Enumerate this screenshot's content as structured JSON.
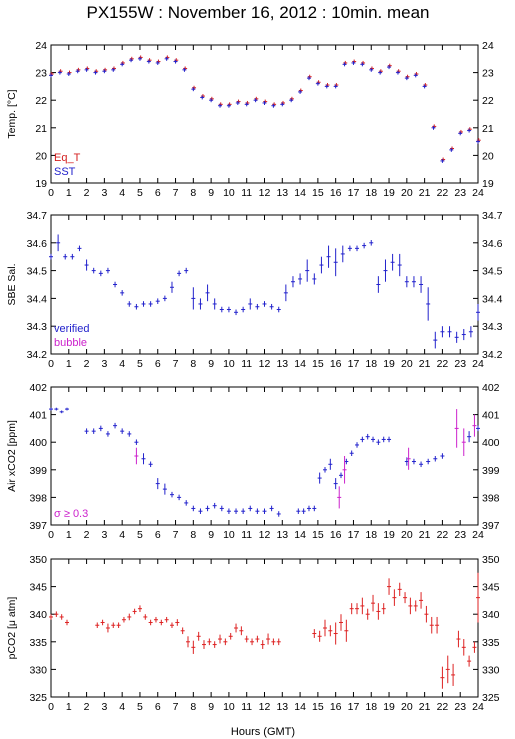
{
  "title": "PX155W : November 16, 2012 : 10min. mean",
  "x_axis": {
    "label": "Hours (GMT)",
    "min": 0,
    "max": 24,
    "ticks": [
      "0",
      "1",
      "2",
      "3",
      "4",
      "5",
      "6",
      "7",
      "8",
      "9",
      "10",
      "11",
      "12",
      "13",
      "14",
      "15",
      "16",
      "17",
      "18",
      "19",
      "20",
      "21",
      "22",
      "23",
      "24"
    ]
  },
  "chart_data": [
    {
      "type": "scatter",
      "ylabel": "Temp. [°C]",
      "ylim": [
        19,
        24
      ],
      "yticks": [
        "19",
        "20",
        "21",
        "22",
        "23",
        "24"
      ],
      "legend": [
        {
          "name": "Eq_T",
          "color": "#d42020"
        },
        {
          "name": "SST",
          "color": "#2222cc"
        }
      ],
      "legend_position": "bottom-left",
      "series": [
        {
          "name": "Eq_T",
          "color": "#d42020",
          "offset": [
            0.04,
            0.05
          ],
          "x": [
            0,
            0.5,
            1,
            1.5,
            2,
            2.5,
            3,
            3.5,
            4,
            4.5,
            5,
            5.5,
            6,
            6.5,
            7,
            7.5,
            8,
            8.5,
            9,
            9.5,
            10,
            10.5,
            11,
            11.5,
            12,
            12.5,
            13,
            13.5,
            14,
            14.5,
            15,
            15.5,
            16,
            16.5,
            17,
            17.5,
            18,
            18.5,
            19,
            19.5,
            20,
            20.5,
            21,
            21.5,
            22,
            22.5,
            23,
            23.5,
            24
          ],
          "y": [
            22.9,
            23.0,
            22.95,
            23.05,
            23.1,
            23.0,
            23.05,
            23.1,
            23.3,
            23.45,
            23.5,
            23.4,
            23.35,
            23.5,
            23.4,
            23.1,
            22.4,
            22.1,
            22.0,
            21.8,
            21.8,
            21.9,
            21.85,
            22.0,
            21.9,
            21.8,
            21.85,
            22.0,
            22.3,
            22.8,
            22.6,
            22.5,
            22.5,
            23.3,
            23.35,
            23.3,
            23.1,
            23.0,
            23.2,
            23.0,
            22.8,
            22.9,
            22.5,
            21.0,
            19.8,
            20.2,
            20.8,
            20.9,
            20.5
          ]
        },
        {
          "name": "SST",
          "color": "#2222cc",
          "offset": [
            0,
            0
          ],
          "x": [
            0,
            0.5,
            1,
            1.5,
            2,
            2.5,
            3,
            3.5,
            4,
            4.5,
            5,
            5.5,
            6,
            6.5,
            7,
            7.5,
            8,
            8.5,
            9,
            9.5,
            10,
            10.5,
            11,
            11.5,
            12,
            12.5,
            13,
            13.5,
            14,
            14.5,
            15,
            15.5,
            16,
            16.5,
            17,
            17.5,
            18,
            18.5,
            19,
            19.5,
            20,
            20.5,
            21,
            21.5,
            22,
            22.5,
            23,
            23.5,
            24
          ],
          "y": [
            22.9,
            23.0,
            22.95,
            23.05,
            23.1,
            23.0,
            23.05,
            23.1,
            23.3,
            23.45,
            23.5,
            23.4,
            23.35,
            23.5,
            23.4,
            23.1,
            22.4,
            22.1,
            22.0,
            21.8,
            21.8,
            21.9,
            21.85,
            22.0,
            21.9,
            21.8,
            21.85,
            22.0,
            22.3,
            22.8,
            22.6,
            22.5,
            22.5,
            23.3,
            23.35,
            23.3,
            23.1,
            23.0,
            23.2,
            23.0,
            22.8,
            22.9,
            22.5,
            21.0,
            19.8,
            20.2,
            20.8,
            20.9,
            20.5
          ]
        }
      ]
    },
    {
      "type": "scatter",
      "ylabel": "SBE Sal.",
      "ylim": [
        34.2,
        34.7
      ],
      "yticks": [
        "34.2",
        "34.3",
        "34.4",
        "34.5",
        "34.6",
        "34.7"
      ],
      "legend": [
        {
          "name": "verified",
          "color": "#2222cc"
        },
        {
          "name": "bubble",
          "color": "#cc22cc"
        }
      ],
      "legend_position": "bottom-left",
      "series": [
        {
          "name": "verified",
          "color": "#2222cc",
          "x": [
            0,
            0.4,
            0.8,
            1.2,
            1.6,
            2,
            2.4,
            2.8,
            3.2,
            3.6,
            4,
            4.4,
            4.8,
            5.2,
            5.6,
            6,
            6.4,
            6.8,
            7.2,
            7.6,
            8,
            8.4,
            8.8,
            9.2,
            9.6,
            10,
            10.4,
            10.8,
            11.2,
            11.6,
            12,
            12.4,
            12.8,
            13.2,
            13.6,
            14,
            14.4,
            14.8,
            15.2,
            15.6,
            16,
            16.4,
            16.8,
            17.2,
            17.6,
            18,
            18.4,
            18.8,
            19.2,
            19.6,
            20,
            20.4,
            20.8,
            21.2,
            21.6,
            22,
            22.4,
            22.8,
            23.2,
            23.6,
            24
          ],
          "y": [
            34.55,
            34.6,
            34.55,
            34.55,
            34.58,
            34.52,
            34.5,
            34.49,
            34.5,
            34.45,
            34.42,
            34.38,
            34.37,
            34.38,
            34.38,
            34.39,
            34.4,
            34.44,
            34.49,
            34.5,
            34.4,
            34.38,
            34.42,
            34.38,
            34.36,
            34.36,
            34.35,
            34.36,
            34.38,
            34.37,
            34.38,
            34.37,
            34.36,
            34.42,
            34.46,
            34.47,
            34.5,
            34.47,
            34.52,
            34.55,
            34.53,
            34.56,
            34.58,
            34.58,
            34.59,
            34.6,
            34.45,
            34.5,
            34.53,
            34.52,
            34.46,
            34.46,
            34.45,
            34.38,
            34.25,
            34.28,
            34.28,
            34.26,
            34.27,
            34.28,
            34.35
          ],
          "err": [
            0.01,
            0.03,
            0.01,
            0.01,
            0.01,
            0.02,
            0.01,
            0.01,
            0.01,
            0.01,
            0.01,
            0.01,
            0.01,
            0.01,
            0.01,
            0.01,
            0.01,
            0.02,
            0.01,
            0.01,
            0.04,
            0.02,
            0.03,
            0.02,
            0.01,
            0.01,
            0.01,
            0.01,
            0.02,
            0.01,
            0.01,
            0.01,
            0.01,
            0.03,
            0.02,
            0.02,
            0.04,
            0.02,
            0.03,
            0.04,
            0.05,
            0.03,
            0.01,
            0.01,
            0.01,
            0.01,
            0.03,
            0.04,
            0.03,
            0.04,
            0.02,
            0.02,
            0.03,
            0.06,
            0.03,
            0.02,
            0.02,
            0.02,
            0.02,
            0.02,
            0.03
          ]
        }
      ]
    },
    {
      "type": "scatter",
      "ylabel": "Air xCO2 [ppm]",
      "ylim": [
        397,
        402
      ],
      "yticks": [
        "397",
        "398",
        "399",
        "400",
        "401",
        "402"
      ],
      "legend": [
        {
          "name": "σ ≥ 0.3",
          "color": "#cc22cc"
        }
      ],
      "legend_position": "bottom-left",
      "series": [
        {
          "name": "",
          "color": "#2222cc",
          "x": [
            0,
            0.3,
            0.6,
            0.9,
            2.0,
            2.4,
            2.8,
            3.2,
            3.6,
            4.0,
            4.4,
            4.8,
            5.2,
            5.6,
            6.0,
            6.4,
            6.8,
            7.2,
            7.6,
            8.0,
            8.4,
            8.8,
            9.2,
            9.6,
            10.0,
            10.4,
            10.8,
            11.2,
            11.6,
            12.0,
            12.4,
            12.8,
            13.9,
            14.2,
            14.5,
            14.8,
            15.1,
            15.4,
            15.7,
            16.0,
            16.3,
            16.6,
            16.9,
            17.2,
            17.5,
            17.8,
            18.1,
            18.4,
            18.7,
            19.0,
            20.0,
            20.4,
            20.8,
            21.2,
            21.6,
            22.0,
            23.5,
            24.0
          ],
          "y": [
            401.2,
            401.2,
            401.1,
            401.2,
            400.4,
            400.4,
            400.5,
            400.3,
            400.6,
            400.4,
            400.3,
            400.0,
            399.4,
            399.2,
            398.5,
            398.3,
            398.1,
            398.0,
            397.8,
            397.6,
            397.5,
            397.6,
            397.7,
            397.6,
            397.5,
            397.5,
            397.5,
            397.6,
            397.5,
            397.5,
            397.6,
            397.4,
            397.5,
            397.5,
            397.6,
            397.6,
            398.7,
            399.0,
            399.2,
            398.5,
            398.8,
            399.3,
            399.6,
            399.9,
            400.1,
            400.2,
            400.1,
            400.0,
            400.1,
            400.1,
            399.3,
            399.3,
            399.2,
            399.3,
            399.4,
            399.5,
            400.2,
            400.5
          ],
          "err": [
            0.05,
            0.05,
            0.05,
            0.05,
            0.1,
            0.1,
            0.1,
            0.1,
            0.1,
            0.1,
            0.1,
            0.1,
            0.2,
            0.1,
            0.2,
            0.2,
            0.1,
            0.1,
            0.1,
            0.1,
            0.1,
            0.1,
            0.1,
            0.1,
            0.1,
            0.1,
            0.1,
            0.1,
            0.1,
            0.1,
            0.1,
            0.1,
            0.1,
            0.1,
            0.1,
            0.1,
            0.2,
            0.1,
            0.2,
            0.2,
            0.1,
            0.1,
            0.1,
            0.1,
            0.1,
            0.1,
            0.1,
            0.1,
            0.1,
            0.1,
            0.15,
            0.1,
            0.1,
            0.1,
            0.1,
            0.1,
            0.2,
            0.1
          ]
        },
        {
          "name": "σ ≥ 0.3",
          "color": "#cc22cc",
          "x": [
            4.8,
            16.2,
            16.5,
            20.1,
            22.8,
            23.2,
            23.8
          ],
          "y": [
            399.5,
            398.0,
            399.0,
            399.4,
            400.5,
            400.0,
            400.6
          ],
          "err": [
            0.3,
            0.4,
            0.5,
            0.4,
            0.7,
            0.5,
            0.4
          ]
        }
      ]
    },
    {
      "type": "scatter",
      "ylabel": "pCO2 [μ atm]",
      "ylim": [
        325,
        350
      ],
      "yticks": [
        "325",
        "330",
        "335",
        "340",
        "345",
        "350"
      ],
      "series": [
        {
          "name": "",
          "color": "#dd2222",
          "x": [
            0,
            0.3,
            0.6,
            0.9,
            2.6,
            2.9,
            3.2,
            3.5,
            3.8,
            4.1,
            4.4,
            4.7,
            5.0,
            5.3,
            5.6,
            5.9,
            6.2,
            6.5,
            6.8,
            7.1,
            7.4,
            7.7,
            8.0,
            8.3,
            8.6,
            8.9,
            9.2,
            9.5,
            9.8,
            10.1,
            10.4,
            10.7,
            11.0,
            11.3,
            11.6,
            11.9,
            12.2,
            12.5,
            12.8,
            14.8,
            15.1,
            15.4,
            15.7,
            16.0,
            16.3,
            16.6,
            16.9,
            17.2,
            17.5,
            17.8,
            18.1,
            18.4,
            18.7,
            19.0,
            19.3,
            19.6,
            19.9,
            20.2,
            20.5,
            20.8,
            21.1,
            21.4,
            21.7,
            22.0,
            22.3,
            22.6,
            22.9,
            23.2,
            23.5,
            23.8,
            24.0
          ],
          "y": [
            339.5,
            340.0,
            339.5,
            338.5,
            338.0,
            338.5,
            337.5,
            338.0,
            338.0,
            339.0,
            339.5,
            340.5,
            341.0,
            339.5,
            338.5,
            339.0,
            338.5,
            339.0,
            338.0,
            338.5,
            337.0,
            335.0,
            334.0,
            336.0,
            334.5,
            335.0,
            334.5,
            335.5,
            335.0,
            336.0,
            337.5,
            337.0,
            335.5,
            335.0,
            335.5,
            334.5,
            335.5,
            335.0,
            335.0,
            336.5,
            336.0,
            337.5,
            337.0,
            336.5,
            338.5,
            337.0,
            341.0,
            341.0,
            341.5,
            340.0,
            342.0,
            340.5,
            341.0,
            345.0,
            343.0,
            344.5,
            343.0,
            341.5,
            341.5,
            342.5,
            340.0,
            338.0,
            338.0,
            328.5,
            330.0,
            329.0,
            335.5,
            334.0,
            331.5,
            334.0,
            343.0
          ],
          "err": [
            0.5,
            0.5,
            0.5,
            0.5,
            0.5,
            0.5,
            0.8,
            0.5,
            0.5,
            0.5,
            0.6,
            0.5,
            0.6,
            0.5,
            0.5,
            0.5,
            0.5,
            0.5,
            0.5,
            0.6,
            0.6,
            1.0,
            1.2,
            0.8,
            0.8,
            0.6,
            0.6,
            0.8,
            0.6,
            0.6,
            0.8,
            0.8,
            0.6,
            0.6,
            0.6,
            0.8,
            1.0,
            0.6,
            0.6,
            0.8,
            1.0,
            1.5,
            1.0,
            2.0,
            1.5,
            2.0,
            1.0,
            1.0,
            1.5,
            1.0,
            1.5,
            1.5,
            1.0,
            1.5,
            1.5,
            1.2,
            1.0,
            1.5,
            1.0,
            1.5,
            1.5,
            1.5,
            1.5,
            2.0,
            2.5,
            2.0,
            1.5,
            1.5,
            1.0,
            1.0,
            4.5
          ]
        }
      ]
    }
  ]
}
